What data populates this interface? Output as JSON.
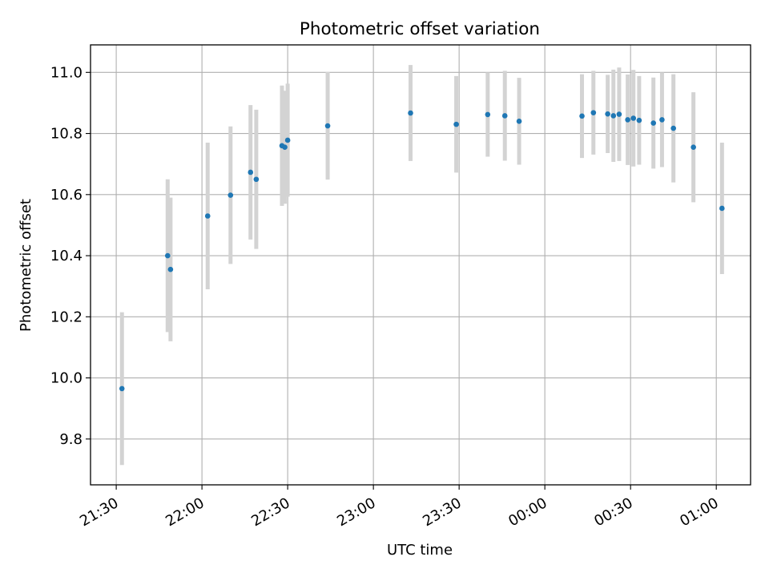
{
  "chart_data": {
    "type": "scatter",
    "title": "Photometric offset variation",
    "xlabel": "UTC time",
    "ylabel": "Photometric offset",
    "x_unit": "UTC time (HH:MM)",
    "xlim": [
      "21:21",
      "01:12"
    ],
    "ylim": [
      9.65,
      11.09
    ],
    "x_ticks": [
      "21:30",
      "22:00",
      "22:30",
      "23:00",
      "23:30",
      "00:00",
      "00:30",
      "01:00"
    ],
    "y_ticks": [
      "9.8",
      "10.0",
      "10.2",
      "10.4",
      "10.6",
      "10.8",
      "11.0"
    ],
    "grid": true,
    "errorbar_color": "#d3d3d3",
    "marker_color": "#1f77b4",
    "points": [
      {
        "x": "21:32",
        "y": 9.965,
        "err": 0.25
      },
      {
        "x": "21:48",
        "y": 10.4,
        "err": 0.25
      },
      {
        "x": "21:49",
        "y": 10.355,
        "err": 0.235
      },
      {
        "x": "22:02",
        "y": 10.53,
        "err": 0.24
      },
      {
        "x": "22:10",
        "y": 10.598,
        "err": 0.225
      },
      {
        "x": "22:17",
        "y": 10.673,
        "err": 0.22
      },
      {
        "x": "22:19",
        "y": 10.65,
        "err": 0.228
      },
      {
        "x": "22:28",
        "y": 10.76,
        "err": 0.197
      },
      {
        "x": "22:29",
        "y": 10.755,
        "err": 0.185
      },
      {
        "x": "22:30",
        "y": 10.778,
        "err": 0.185
      },
      {
        "x": "22:44",
        "y": 10.825,
        "err": 0.176
      },
      {
        "x": "23:13",
        "y": 10.867,
        "err": 0.157
      },
      {
        "x": "23:29",
        "y": 10.83,
        "err": 0.158
      },
      {
        "x": "23:40",
        "y": 10.862,
        "err": 0.138
      },
      {
        "x": "23:46",
        "y": 10.858,
        "err": 0.147
      },
      {
        "x": "23:51",
        "y": 10.84,
        "err": 0.142
      },
      {
        "x": "00:13",
        "y": 10.857,
        "err": 0.137
      },
      {
        "x": "00:17",
        "y": 10.868,
        "err": 0.137
      },
      {
        "x": "00:22",
        "y": 10.864,
        "err": 0.128
      },
      {
        "x": "00:24",
        "y": 10.858,
        "err": 0.151
      },
      {
        "x": "00:26",
        "y": 10.863,
        "err": 0.153
      },
      {
        "x": "00:29",
        "y": 10.845,
        "err": 0.148
      },
      {
        "x": "00:31",
        "y": 10.85,
        "err": 0.158
      },
      {
        "x": "00:33",
        "y": 10.843,
        "err": 0.145
      },
      {
        "x": "00:38",
        "y": 10.834,
        "err": 0.149
      },
      {
        "x": "00:41",
        "y": 10.845,
        "err": 0.155
      },
      {
        "x": "00:45",
        "y": 10.817,
        "err": 0.177
      },
      {
        "x": "00:52",
        "y": 10.755,
        "err": 0.18
      },
      {
        "x": "01:02",
        "y": 10.555,
        "err": 0.215
      }
    ]
  }
}
